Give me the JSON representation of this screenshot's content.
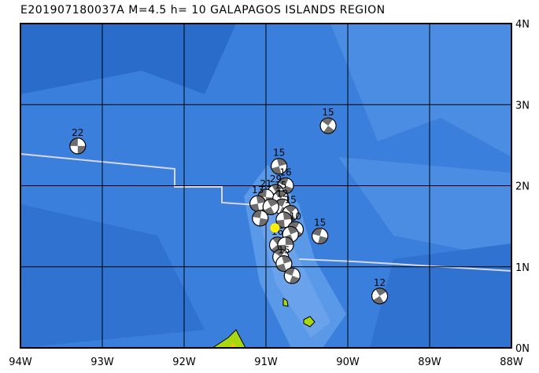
{
  "title": "E201907180037A  M=4.5  h=  10  GALAPAGOS ISLANDS REGION",
  "map": {
    "lon_range": [
      -94,
      -88
    ],
    "lat_range": [
      0,
      4
    ],
    "x_ticks": [
      "94W",
      "93W",
      "92W",
      "91W",
      "90W",
      "89W",
      "88W"
    ],
    "y_ticks": [
      "0N",
      "1N",
      "2N",
      "3N",
      "4N"
    ],
    "colors": {
      "ocean_deep": "#2a6cc9",
      "ocean_mid": "#3a7fdc",
      "ocean_shallow": "#6aa3ec",
      "land": "#a8d810",
      "peak": "#f0e020",
      "epicenter": "#ffee00",
      "boundary": "#d8d8f0",
      "beachball_dark": "#6e6e6e"
    },
    "epicenter": {
      "lon": -90.89,
      "lat": 1.48
    },
    "mechanisms": [
      {
        "lon": -93.3,
        "lat": 2.49,
        "depth": "22"
      },
      {
        "lon": -90.24,
        "lat": 2.74,
        "depth": "15"
      },
      {
        "lon": -90.84,
        "lat": 2.24,
        "depth": "15"
      },
      {
        "lon": -90.76,
        "lat": 2.0,
        "depth": "16"
      },
      {
        "lon": -90.88,
        "lat": 1.92,
        "depth": "29"
      },
      {
        "lon": -91.0,
        "lat": 1.86,
        "depth": "21"
      },
      {
        "lon": -90.82,
        "lat": 1.84,
        "depth": "15"
      },
      {
        "lon": -91.1,
        "lat": 1.78,
        "depth": "13"
      },
      {
        "lon": -90.8,
        "lat": 1.74,
        "depth": "12"
      },
      {
        "lon": -90.94,
        "lat": 1.74,
        "depth": ""
      },
      {
        "lon": -91.07,
        "lat": 1.6,
        "depth": ""
      },
      {
        "lon": -90.7,
        "lat": 1.66,
        "depth": "15"
      },
      {
        "lon": -90.78,
        "lat": 1.58,
        "depth": ""
      },
      {
        "lon": -90.64,
        "lat": 1.46,
        "depth": "10"
      },
      {
        "lon": -90.7,
        "lat": 1.4,
        "depth": ""
      },
      {
        "lon": -90.34,
        "lat": 1.38,
        "depth": "15"
      },
      {
        "lon": -90.86,
        "lat": 1.27,
        "depth": "16"
      },
      {
        "lon": -90.76,
        "lat": 1.27,
        "depth": ""
      },
      {
        "lon": -90.82,
        "lat": 1.12,
        "depth": ""
      },
      {
        "lon": -90.78,
        "lat": 1.04,
        "depth": "15"
      },
      {
        "lon": -90.68,
        "lat": 0.89,
        "depth": ""
      },
      {
        "lon": -89.61,
        "lat": 0.64,
        "depth": "12"
      }
    ]
  }
}
